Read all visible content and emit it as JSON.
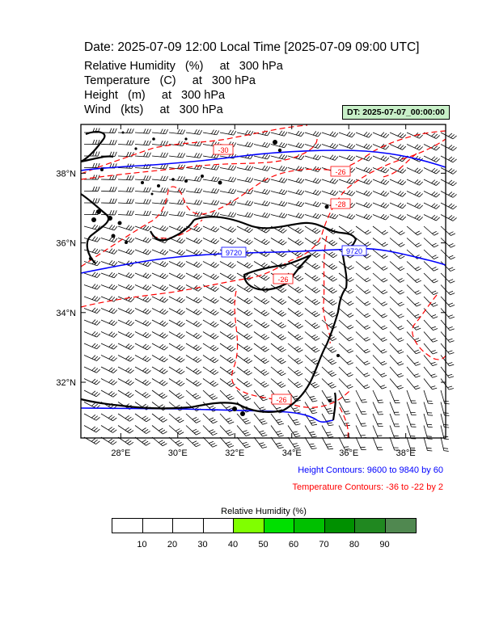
{
  "title": "Date: 2025-07-09  12:00 Local Time [2025-07-09  09:00 UTC]",
  "variables": [
    "Relative Humidity   (%)     at   300 hPa",
    "Temperature   (C)     at   300 hPa",
    "Height   (m)     at   300 hPa",
    "Wind   (kts)     at   300 hPa"
  ],
  "dt_label": "DT: 2025-07-07_00:00:00",
  "map": {
    "lon_range": [
      26.6,
      39.4
    ],
    "lat_range": [
      30.4,
      39.4
    ],
    "lon_ticks": [
      "28°E",
      "30°E",
      "32°E",
      "34°E",
      "36°E",
      "38°E"
    ],
    "lon_tick_values": [
      28,
      30,
      32,
      34,
      36,
      38
    ],
    "lat_ticks": [
      "38°N",
      "36°N",
      "34°N",
      "32°N"
    ],
    "lat_tick_values": [
      38,
      36,
      34,
      32
    ],
    "height_labels": [
      "9720",
      "9720"
    ],
    "temperature_labels": [
      "-30",
      "-26",
      "-28",
      "-26",
      "-26"
    ],
    "colors": {
      "height": "#0000ff",
      "temperature": "#ff0000",
      "coast": "#000000"
    }
  },
  "height_note": "Height Contours: 9600 to 9840 by 60",
  "temperature_note": "Temperature Contours: -36 to -22 by 2",
  "colorbar": {
    "title": "Relative Humidity  (%)",
    "labels": [
      "10",
      "20",
      "30",
      "40",
      "50",
      "60",
      "70",
      "80",
      "90"
    ],
    "colors": [
      "#ffffff",
      "#ffffff",
      "#ffffff",
      "#ffffff",
      "#80ff00",
      "#00e000",
      "#00c000",
      "#009000",
      "#208820",
      "#508850"
    ]
  }
}
